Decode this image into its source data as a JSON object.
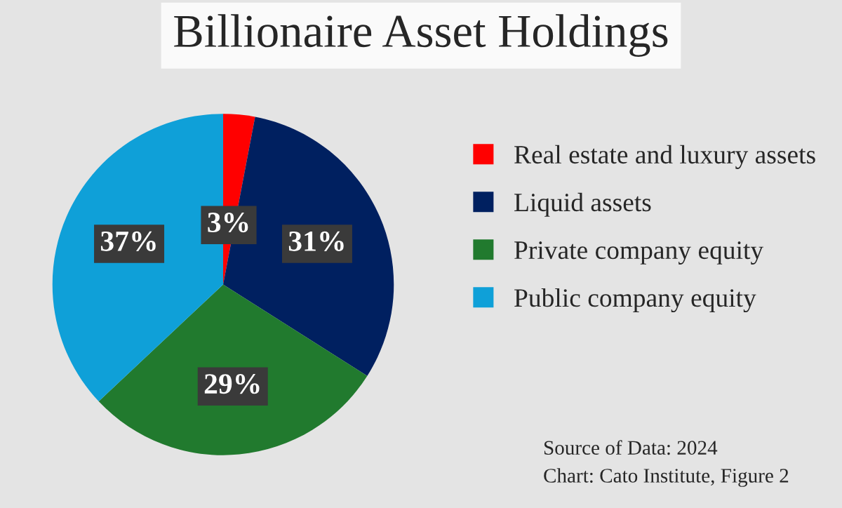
{
  "chart_data": {
    "type": "pie",
    "title": "Billionaire Asset Holdings",
    "categories": [
      "Real estate and luxury assets",
      "Liquid assets",
      "Private company equity",
      "Public company equity"
    ],
    "values": [
      3,
      31,
      29,
      37
    ],
    "colors": [
      "#ff0000",
      "#002060",
      "#217a2e",
      "#0fa0d8"
    ],
    "value_labels": [
      "3%",
      "31%",
      "29%",
      "37%"
    ],
    "legend": "right",
    "annotations": [
      "Source of Data: 2024",
      "Chart: Cato Institute, Figure 2"
    ]
  }
}
